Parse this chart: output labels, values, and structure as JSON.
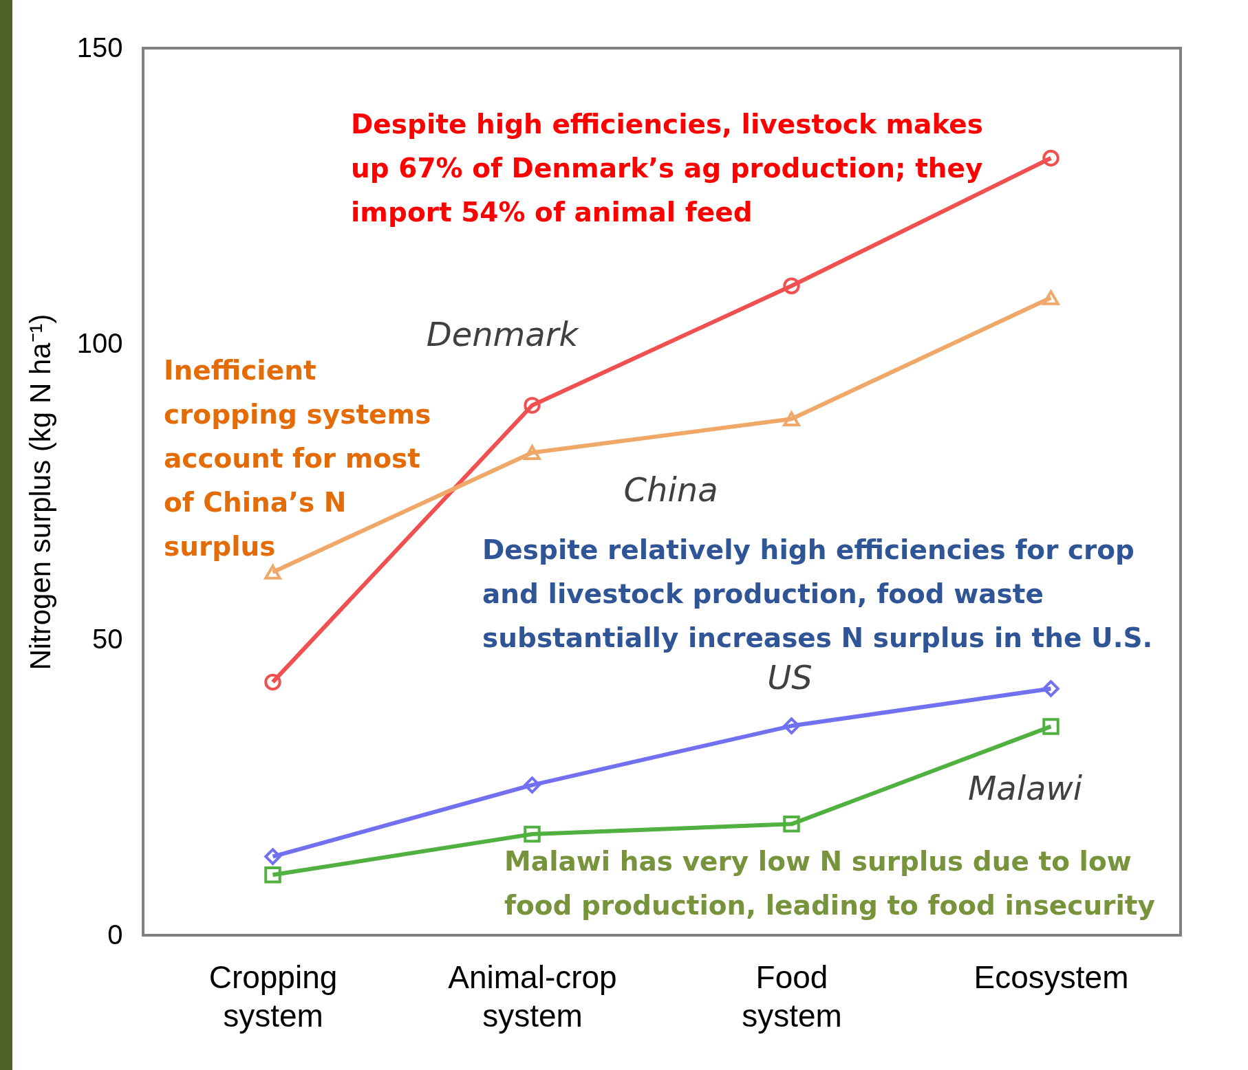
{
  "chart_data": {
    "type": "line",
    "ylabel": "Nitrogen surplus (kg N ha⁻¹)",
    "categories": [
      "Cropping system",
      "Animal-crop system",
      "Food system",
      "Ecosystem"
    ],
    "ylim": [
      0,
      150
    ],
    "yticks": [
      0,
      50,
      100,
      150
    ],
    "line_style": "solid",
    "series": [
      {
        "name": "Denmark",
        "color": "#f05050",
        "marker": "circle",
        "values": [
          42.8,
          89.6,
          109.8,
          131.4
        ]
      },
      {
        "name": "China",
        "color": "#f0a868",
        "marker": "triangle",
        "values": [
          61.4,
          81.6,
          87.3,
          107.8
        ]
      },
      {
        "name": "US",
        "color": "#7070f0",
        "marker": "diamond",
        "values": [
          13.3,
          25.4,
          35.4,
          41.7
        ]
      },
      {
        "name": "Malawi",
        "color": "#50b040",
        "marker": "square",
        "values": [
          10.2,
          17.1,
          18.8,
          35.3
        ]
      }
    ],
    "annotations": [
      "Despite high efficiencies, livestock makes\nup 67% of Denmark’s ag production; they\nimport 54% of animal feed",
      "Inefficient\ncropping systems\naccount for most\nof China’s N\nsurplus",
      "Despite relatively high efficiencies for crop\nand livestock production, food waste\nsubstantially increases N surplus in the U.S.",
      "Malawi has very low N surplus due to low\nfood production, leading to food insecurity"
    ]
  }
}
